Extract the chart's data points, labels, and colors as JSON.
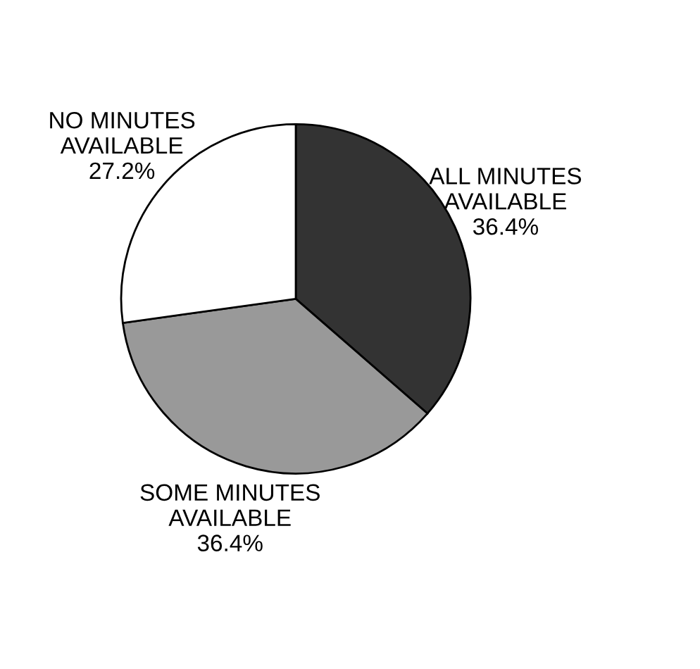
{
  "chart_data": {
    "type": "pie",
    "categories": [
      "ALL MINUTES\nAVAILABLE",
      "SOME MINUTES\nAVAILABLE",
      "NO MINUTES\nAVAILABLE"
    ],
    "values": [
      36.4,
      36.4,
      27.2
    ],
    "colors": [
      "#333333",
      "#999999",
      "#ffffff"
    ],
    "value_labels": [
      "36.4%",
      "36.4%",
      "27.2%"
    ]
  }
}
